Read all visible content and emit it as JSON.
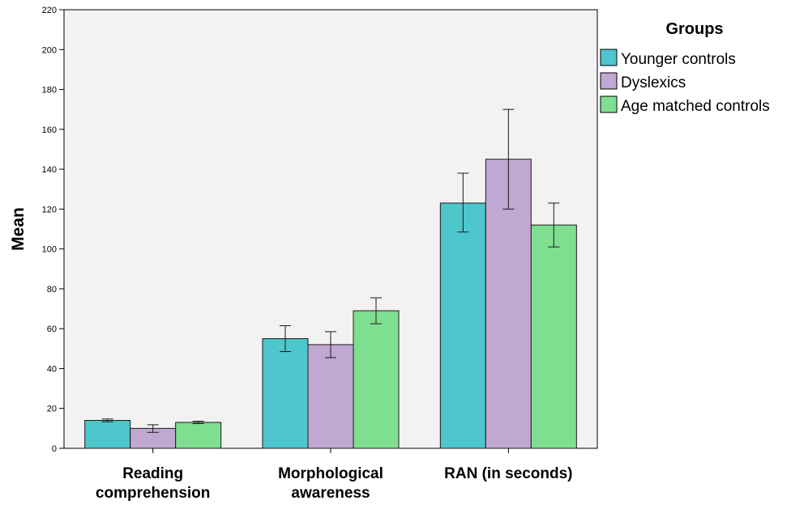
{
  "chart_data": {
    "type": "bar",
    "categories": [
      [
        "Reading",
        "comprehension"
      ],
      [
        "Morphological",
        "awareness"
      ],
      [
        "RAN (in seconds)"
      ]
    ],
    "series": [
      {
        "name": "Younger controls",
        "color": "#4dc6cc",
        "values": [
          14,
          55,
          123
        ],
        "error_low": [
          13.3,
          48.5,
          108.5
        ],
        "error_high": [
          14.7,
          61.5,
          138
        ]
      },
      {
        "name": "Dyslexics",
        "color": "#c0a8d2",
        "values": [
          10,
          52,
          145
        ],
        "error_low": [
          8,
          45.5,
          120
        ],
        "error_high": [
          11.8,
          58.5,
          170
        ]
      },
      {
        "name": "Age matched controls",
        "color": "#7fdf91",
        "values": [
          13,
          69,
          112
        ],
        "error_low": [
          12.4,
          62.5,
          101
        ],
        "error_high": [
          13.6,
          75.5,
          123
        ]
      }
    ],
    "xlabel": "",
    "ylabel": "Mean",
    "ylim": [
      0,
      220
    ],
    "yticks": [
      0,
      20,
      40,
      60,
      80,
      100,
      120,
      140,
      160,
      180,
      200,
      220
    ],
    "grid": false,
    "plot_background": "#f2f2f2",
    "legend": {
      "title": "Groups",
      "position": "right"
    }
  }
}
